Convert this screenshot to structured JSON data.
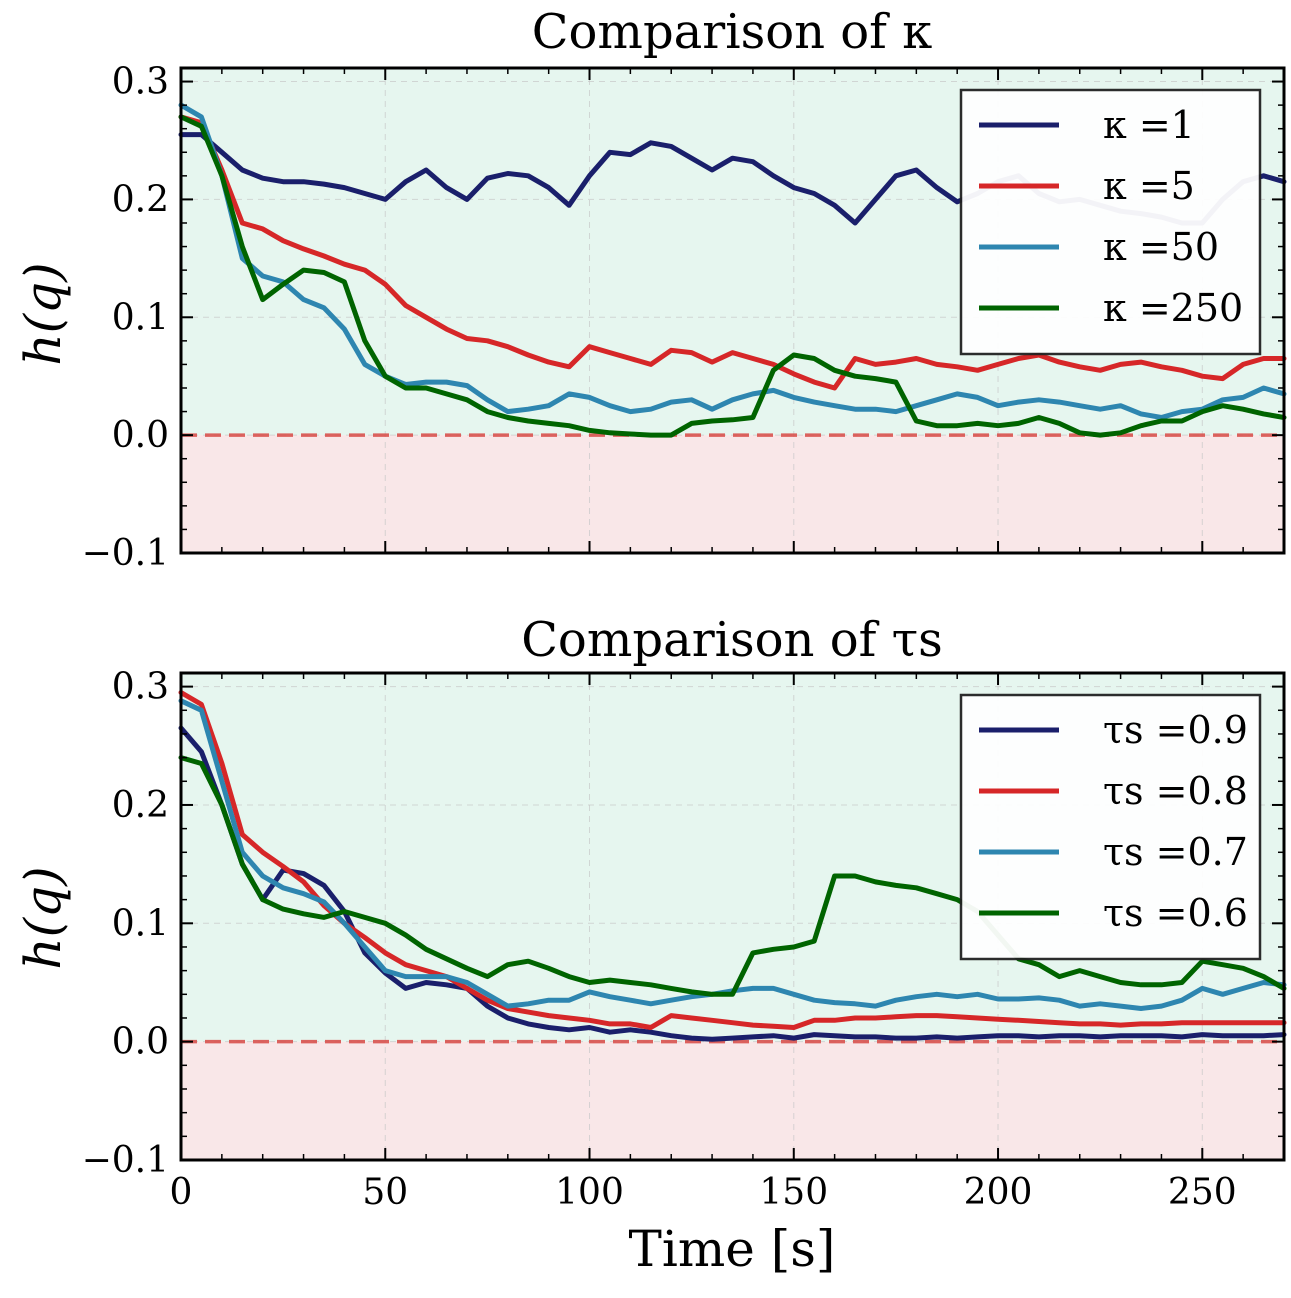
{
  "figure": {
    "xlabel": "Time [s]"
  },
  "chart_data": [
    {
      "type": "line",
      "title": "Comparison of κ",
      "xlabel": "",
      "ylabel": "h(q)",
      "xlim": [
        0,
        270
      ],
      "ylim": [
        -0.1,
        0.3
      ],
      "x_ticks": [
        "0",
        "50",
        "100",
        "150",
        "200",
        "250"
      ],
      "y_ticks": [
        "−0.1",
        "0.0",
        "0.1",
        "0.2",
        "0.3"
      ],
      "threshold": 0.0,
      "grid": true,
      "legend": "top-right",
      "colors": [
        "#1a1f6b",
        "#d62728",
        "#2e86b0",
        "#006400"
      ],
      "series": [
        {
          "name": "κ =1",
          "x": [
            0,
            5,
            10,
            15,
            20,
            25,
            30,
            35,
            40,
            45,
            50,
            55,
            60,
            65,
            70,
            75,
            80,
            85,
            90,
            95,
            100,
            105,
            110,
            115,
            120,
            125,
            130,
            135,
            140,
            145,
            150,
            155,
            160,
            165,
            170,
            175,
            180,
            185,
            190,
            195,
            200,
            205,
            210,
            215,
            220,
            225,
            230,
            235,
            240,
            245,
            250,
            255,
            260,
            265,
            270
          ],
          "y": [
            0.255,
            0.255,
            0.24,
            0.225,
            0.218,
            0.215,
            0.215,
            0.213,
            0.21,
            0.205,
            0.2,
            0.215,
            0.225,
            0.21,
            0.2,
            0.218,
            0.222,
            0.22,
            0.21,
            0.195,
            0.22,
            0.24,
            0.238,
            0.248,
            0.245,
            0.235,
            0.225,
            0.235,
            0.232,
            0.22,
            0.21,
            0.205,
            0.195,
            0.18,
            0.2,
            0.22,
            0.225,
            0.21,
            0.198,
            0.205,
            0.215,
            0.22,
            0.205,
            0.198,
            0.2,
            0.195,
            0.19,
            0.188,
            0.185,
            0.18,
            0.18,
            0.2,
            0.215,
            0.22,
            0.215
          ]
        },
        {
          "name": "κ =5",
          "x": [
            0,
            5,
            10,
            15,
            20,
            25,
            30,
            35,
            40,
            45,
            50,
            55,
            60,
            65,
            70,
            75,
            80,
            85,
            90,
            95,
            100,
            105,
            110,
            115,
            120,
            125,
            130,
            135,
            140,
            145,
            150,
            155,
            160,
            165,
            170,
            175,
            180,
            185,
            190,
            195,
            200,
            205,
            210,
            215,
            220,
            225,
            230,
            235,
            240,
            245,
            250,
            255,
            260,
            265,
            270
          ],
          "y": [
            0.27,
            0.265,
            0.225,
            0.18,
            0.175,
            0.165,
            0.158,
            0.152,
            0.145,
            0.14,
            0.128,
            0.11,
            0.1,
            0.09,
            0.082,
            0.08,
            0.075,
            0.068,
            0.062,
            0.058,
            0.075,
            0.07,
            0.065,
            0.06,
            0.072,
            0.07,
            0.062,
            0.07,
            0.065,
            0.06,
            0.052,
            0.045,
            0.04,
            0.065,
            0.06,
            0.062,
            0.065,
            0.06,
            0.058,
            0.055,
            0.06,
            0.065,
            0.068,
            0.062,
            0.058,
            0.055,
            0.06,
            0.062,
            0.058,
            0.055,
            0.05,
            0.048,
            0.06,
            0.065,
            0.065
          ]
        },
        {
          "name": "κ =50",
          "x": [
            0,
            5,
            10,
            15,
            20,
            25,
            30,
            35,
            40,
            45,
            50,
            55,
            60,
            65,
            70,
            75,
            80,
            85,
            90,
            95,
            100,
            105,
            110,
            115,
            120,
            125,
            130,
            135,
            140,
            145,
            150,
            155,
            160,
            165,
            170,
            175,
            180,
            185,
            190,
            195,
            200,
            205,
            210,
            215,
            220,
            225,
            230,
            235,
            240,
            245,
            250,
            255,
            260,
            265,
            270
          ],
          "y": [
            0.28,
            0.27,
            0.22,
            0.15,
            0.135,
            0.13,
            0.115,
            0.108,
            0.09,
            0.06,
            0.05,
            0.043,
            0.045,
            0.045,
            0.042,
            0.03,
            0.02,
            0.022,
            0.025,
            0.035,
            0.032,
            0.025,
            0.02,
            0.022,
            0.028,
            0.03,
            0.022,
            0.03,
            0.035,
            0.038,
            0.032,
            0.028,
            0.025,
            0.022,
            0.022,
            0.02,
            0.025,
            0.03,
            0.035,
            0.032,
            0.025,
            0.028,
            0.03,
            0.028,
            0.025,
            0.022,
            0.025,
            0.018,
            0.015,
            0.02,
            0.022,
            0.03,
            0.032,
            0.04,
            0.035
          ]
        },
        {
          "name": "κ =250",
          "x": [
            0,
            5,
            10,
            15,
            20,
            25,
            30,
            35,
            40,
            45,
            50,
            55,
            60,
            65,
            70,
            75,
            80,
            85,
            90,
            95,
            100,
            105,
            110,
            115,
            120,
            125,
            130,
            135,
            140,
            145,
            150,
            155,
            160,
            165,
            170,
            175,
            180,
            185,
            190,
            195,
            200,
            205,
            210,
            215,
            220,
            225,
            230,
            235,
            240,
            245,
            250,
            255,
            260,
            265,
            270
          ],
          "y": [
            0.27,
            0.262,
            0.22,
            0.16,
            0.115,
            0.128,
            0.14,
            0.138,
            0.13,
            0.08,
            0.05,
            0.04,
            0.04,
            0.035,
            0.03,
            0.02,
            0.015,
            0.012,
            0.01,
            0.008,
            0.004,
            0.002,
            0.001,
            0.0,
            0.0,
            0.01,
            0.012,
            0.013,
            0.015,
            0.055,
            0.068,
            0.065,
            0.055,
            0.05,
            0.048,
            0.045,
            0.012,
            0.008,
            0.008,
            0.01,
            0.008,
            0.01,
            0.015,
            0.01,
            0.002,
            0.0,
            0.002,
            0.008,
            0.012,
            0.012,
            0.02,
            0.025,
            0.022,
            0.018,
            0.015
          ]
        }
      ]
    },
    {
      "type": "line",
      "title": "Comparison of τs",
      "xlabel": "Time [s]",
      "ylabel": "h(q)",
      "xlim": [
        0,
        270
      ],
      "ylim": [
        -0.1,
        0.3
      ],
      "x_ticks": [
        "0",
        "50",
        "100",
        "150",
        "200",
        "250"
      ],
      "y_ticks": [
        "−0.1",
        "0.0",
        "0.1",
        "0.2",
        "0.3"
      ],
      "threshold": 0.0,
      "grid": true,
      "legend": "top-right",
      "colors": [
        "#1a1f6b",
        "#d62728",
        "#2e86b0",
        "#006400"
      ],
      "series": [
        {
          "name": "τs =0.9",
          "x": [
            0,
            5,
            10,
            15,
            20,
            25,
            30,
            35,
            40,
            45,
            50,
            55,
            60,
            65,
            70,
            75,
            80,
            85,
            90,
            95,
            100,
            105,
            110,
            115,
            120,
            125,
            130,
            135,
            140,
            145,
            150,
            155,
            160,
            165,
            170,
            175,
            180,
            185,
            190,
            195,
            200,
            205,
            210,
            215,
            220,
            225,
            230,
            235,
            240,
            245,
            250,
            255,
            260,
            265,
            270
          ],
          "y": [
            0.265,
            0.245,
            0.2,
            0.15,
            0.12,
            0.145,
            0.142,
            0.132,
            0.11,
            0.075,
            0.058,
            0.045,
            0.05,
            0.048,
            0.045,
            0.03,
            0.02,
            0.015,
            0.012,
            0.01,
            0.012,
            0.008,
            0.01,
            0.008,
            0.005,
            0.003,
            0.002,
            0.003,
            0.004,
            0.005,
            0.003,
            0.006,
            0.005,
            0.004,
            0.004,
            0.003,
            0.003,
            0.004,
            0.003,
            0.004,
            0.005,
            0.005,
            0.004,
            0.005,
            0.005,
            0.004,
            0.005,
            0.005,
            0.005,
            0.004,
            0.006,
            0.005,
            0.005,
            0.005,
            0.006
          ]
        },
        {
          "name": "τs =0.8",
          "x": [
            0,
            5,
            10,
            15,
            20,
            25,
            30,
            35,
            40,
            45,
            50,
            55,
            60,
            65,
            70,
            75,
            80,
            85,
            90,
            95,
            100,
            105,
            110,
            115,
            120,
            125,
            130,
            135,
            140,
            145,
            150,
            155,
            160,
            165,
            170,
            175,
            180,
            185,
            190,
            195,
            200,
            205,
            210,
            215,
            220,
            225,
            230,
            235,
            240,
            245,
            250,
            255,
            260,
            265,
            270
          ],
          "y": [
            0.295,
            0.285,
            0.235,
            0.175,
            0.16,
            0.148,
            0.135,
            0.115,
            0.1,
            0.088,
            0.075,
            0.065,
            0.06,
            0.055,
            0.045,
            0.035,
            0.028,
            0.025,
            0.022,
            0.02,
            0.018,
            0.015,
            0.015,
            0.012,
            0.022,
            0.02,
            0.018,
            0.016,
            0.014,
            0.013,
            0.012,
            0.018,
            0.018,
            0.02,
            0.02,
            0.021,
            0.022,
            0.022,
            0.021,
            0.02,
            0.019,
            0.018,
            0.017,
            0.016,
            0.015,
            0.015,
            0.014,
            0.015,
            0.015,
            0.016,
            0.016,
            0.016,
            0.016,
            0.016,
            0.016
          ]
        },
        {
          "name": "τs =0.7",
          "x": [
            0,
            5,
            10,
            15,
            20,
            25,
            30,
            35,
            40,
            45,
            50,
            55,
            60,
            65,
            70,
            75,
            80,
            85,
            90,
            95,
            100,
            105,
            110,
            115,
            120,
            125,
            130,
            135,
            140,
            145,
            150,
            155,
            160,
            165,
            170,
            175,
            180,
            185,
            190,
            195,
            200,
            205,
            210,
            215,
            220,
            225,
            230,
            235,
            240,
            245,
            250,
            255,
            260,
            265,
            270
          ],
          "y": [
            0.288,
            0.28,
            0.22,
            0.16,
            0.14,
            0.13,
            0.125,
            0.118,
            0.1,
            0.08,
            0.06,
            0.055,
            0.055,
            0.055,
            0.05,
            0.04,
            0.03,
            0.032,
            0.035,
            0.035,
            0.042,
            0.038,
            0.035,
            0.032,
            0.035,
            0.038,
            0.04,
            0.043,
            0.045,
            0.045,
            0.04,
            0.035,
            0.033,
            0.032,
            0.03,
            0.035,
            0.038,
            0.04,
            0.038,
            0.04,
            0.036,
            0.036,
            0.037,
            0.035,
            0.03,
            0.032,
            0.03,
            0.028,
            0.03,
            0.035,
            0.045,
            0.04,
            0.045,
            0.05,
            0.048
          ]
        },
        {
          "name": "τs =0.6",
          "x": [
            0,
            5,
            10,
            15,
            20,
            25,
            30,
            35,
            40,
            45,
            50,
            55,
            60,
            65,
            70,
            75,
            80,
            85,
            90,
            95,
            100,
            105,
            110,
            115,
            120,
            125,
            130,
            135,
            140,
            145,
            150,
            155,
            160,
            165,
            170,
            175,
            180,
            185,
            190,
            195,
            200,
            205,
            210,
            215,
            220,
            225,
            230,
            235,
            240,
            245,
            250,
            255,
            260,
            265,
            270
          ],
          "y": [
            0.24,
            0.235,
            0.2,
            0.15,
            0.12,
            0.112,
            0.108,
            0.105,
            0.11,
            0.105,
            0.1,
            0.09,
            0.078,
            0.07,
            0.062,
            0.055,
            0.065,
            0.068,
            0.062,
            0.055,
            0.05,
            0.052,
            0.05,
            0.048,
            0.045,
            0.042,
            0.04,
            0.04,
            0.075,
            0.078,
            0.08,
            0.085,
            0.14,
            0.14,
            0.135,
            0.132,
            0.13,
            0.125,
            0.12,
            0.11,
            0.09,
            0.07,
            0.065,
            0.055,
            0.06,
            0.055,
            0.05,
            0.048,
            0.048,
            0.05,
            0.068,
            0.065,
            0.062,
            0.055,
            0.045
          ]
        }
      ]
    }
  ]
}
